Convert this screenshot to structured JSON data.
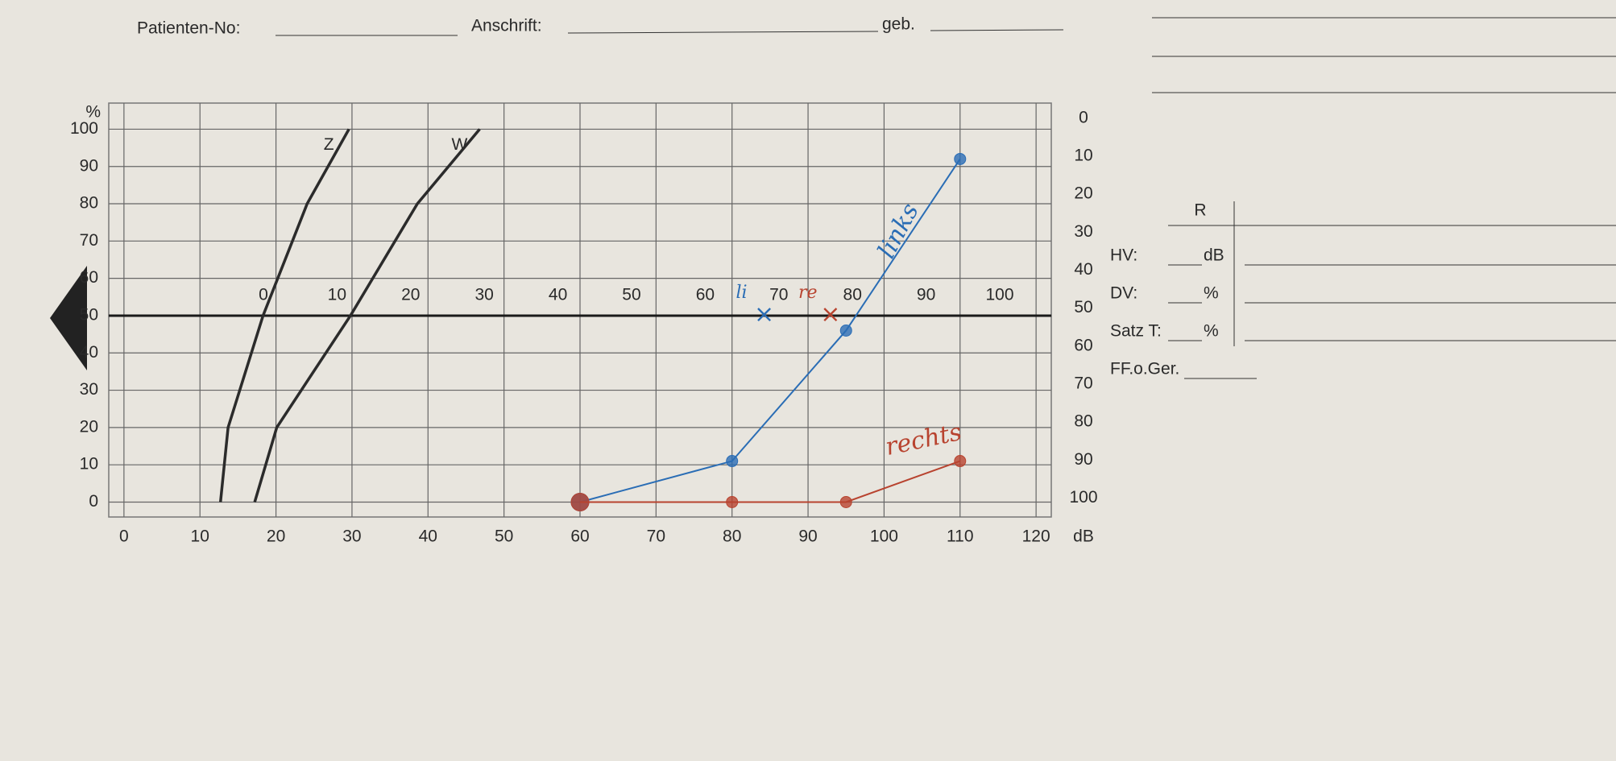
{
  "form": {
    "patient_no": "Patienten-No:",
    "address": "Anschrift:",
    "born": "geb."
  },
  "side_panel": {
    "column": "R",
    "rows": [
      [
        "HV:",
        "dB"
      ],
      [
        "DV:",
        "%"
      ],
      [
        "Satz T:",
        "%"
      ],
      [
        "FF.o.Ger."
      ]
    ]
  },
  "chart_data": {
    "type": "line",
    "y_label": "%",
    "x_label": "dB",
    "xlim": [
      -2,
      122
    ],
    "xticks": [
      0,
      10,
      20,
      30,
      40,
      50,
      60,
      70,
      80,
      90,
      100,
      110,
      120
    ],
    "ylim": [
      -4,
      107
    ],
    "yticks": [
      0,
      10,
      20,
      30,
      40,
      50,
      60,
      70,
      80,
      90,
      100
    ],
    "y2lim": [
      105,
      -4
    ],
    "y2ticks": [
      0,
      10,
      20,
      30,
      40,
      50,
      60,
      70,
      80,
      90,
      100
    ],
    "x2lim": [
      -21,
      107
    ],
    "x2ticks": [
      0,
      10,
      20,
      30,
      40,
      50,
      60,
      70,
      80,
      90,
      100
    ],
    "grid": true,
    "series": [
      {
        "name": "Z",
        "color": "#2b2b2b",
        "marker": false,
        "x": [
          12.7,
          13.7,
          18.3,
          24.1,
          29.6
        ],
        "values": [
          0,
          20,
          50,
          80,
          100
        ]
      },
      {
        "name": "W",
        "color": "#2b2b2b",
        "marker": false,
        "x": [
          17.2,
          20.1,
          29.8,
          38.6,
          46.8
        ],
        "values": [
          0,
          20,
          50,
          80,
          100
        ]
      },
      {
        "name": "links",
        "color": "#2a6db5",
        "marker": true,
        "x": [
          60,
          80,
          95,
          110
        ],
        "values": [
          0,
          11,
          46,
          92
        ]
      },
      {
        "name": "rechts",
        "color": "#b8432f",
        "marker": true,
        "x": [
          60,
          80,
          95,
          110
        ],
        "values": [
          0,
          0,
          0,
          11
        ]
      }
    ],
    "markers": [
      {
        "label": "li",
        "x2": 68,
        "color": "#2a6db5"
      },
      {
        "label": "re",
        "x2": 77,
        "color": "#b8432f"
      }
    ]
  }
}
